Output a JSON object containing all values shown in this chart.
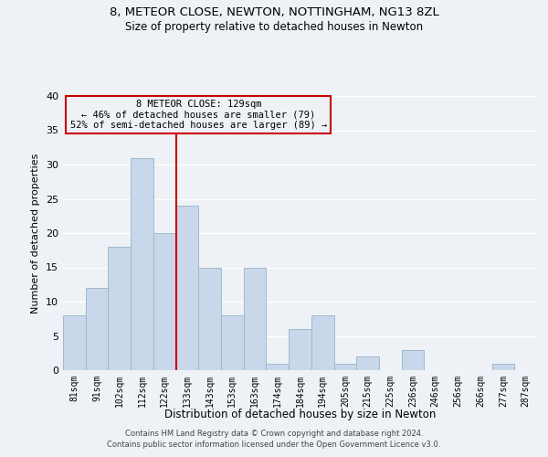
{
  "title1": "8, METEOR CLOSE, NEWTON, NOTTINGHAM, NG13 8ZL",
  "title2": "Size of property relative to detached houses in Newton",
  "xlabel": "Distribution of detached houses by size in Newton",
  "ylabel": "Number of detached properties",
  "categories": [
    "81sqm",
    "91sqm",
    "102sqm",
    "112sqm",
    "122sqm",
    "133sqm",
    "143sqm",
    "153sqm",
    "163sqm",
    "174sqm",
    "184sqm",
    "194sqm",
    "205sqm",
    "215sqm",
    "225sqm",
    "236sqm",
    "246sqm",
    "256sqm",
    "266sqm",
    "277sqm",
    "287sqm"
  ],
  "values": [
    8,
    12,
    18,
    31,
    20,
    24,
    15,
    8,
    15,
    1,
    6,
    8,
    1,
    2,
    0,
    3,
    0,
    0,
    0,
    1,
    0
  ],
  "bar_color": "#c8d8ea",
  "bar_edge_color": "#a0b8cc",
  "vline_color": "#cc0000",
  "ylim": [
    0,
    40
  ],
  "yticks": [
    0,
    5,
    10,
    15,
    20,
    25,
    30,
    35,
    40
  ],
  "annotation_lines": [
    "8 METEOR CLOSE: 129sqm",
    "← 46% of detached houses are smaller (79)",
    "52% of semi-detached houses are larger (89) →"
  ],
  "footer1": "Contains HM Land Registry data © Crown copyright and database right 2024.",
  "footer2": "Contains public sector information licensed under the Open Government Licence v3.0.",
  "bg_color": "#eef2f7"
}
